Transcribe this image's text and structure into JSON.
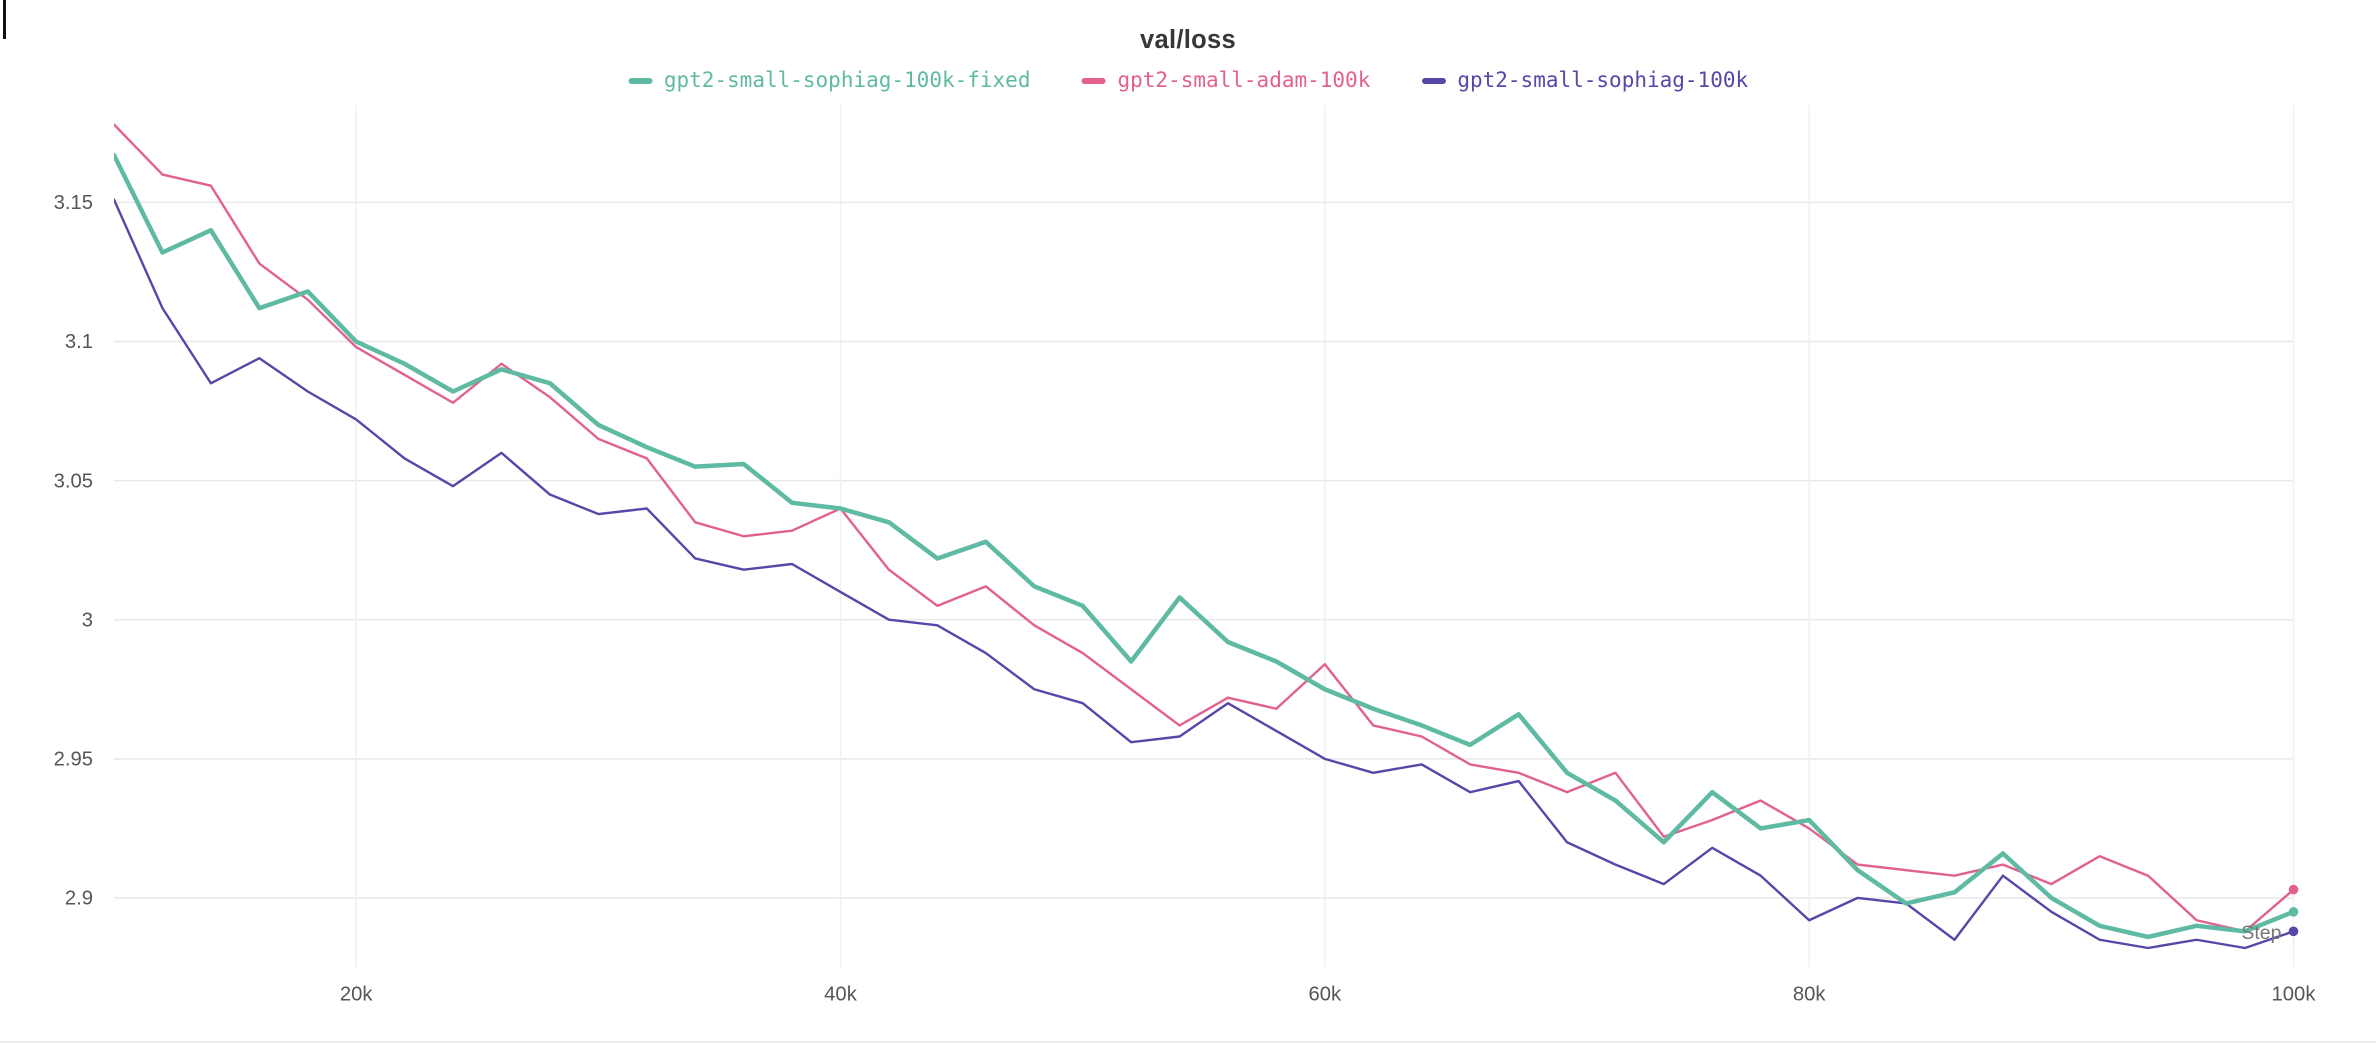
{
  "chart_data": {
    "type": "line",
    "title": "val/loss",
    "xlabel": "Step",
    "ylabel": "",
    "grid": true,
    "legend_position": "top",
    "xlim": [
      10000,
      100000
    ],
    "ylim": [
      2.875,
      3.185
    ],
    "x_ticks": [
      {
        "value": 20000,
        "label": "20k"
      },
      {
        "value": 40000,
        "label": "40k"
      },
      {
        "value": 60000,
        "label": "60k"
      },
      {
        "value": 80000,
        "label": "80k"
      },
      {
        "value": 100000,
        "label": "100k"
      }
    ],
    "y_ticks": [
      {
        "value": 3.15,
        "label": "3.15"
      },
      {
        "value": 3.1,
        "label": "3.1"
      },
      {
        "value": 3.05,
        "label": "3.05"
      },
      {
        "value": 3.0,
        "label": "3"
      },
      {
        "value": 2.95,
        "label": "2.95"
      },
      {
        "value": 2.9,
        "label": "2.9"
      }
    ],
    "x": [
      10000,
      12000,
      14000,
      16000,
      18000,
      20000,
      22000,
      24000,
      26000,
      28000,
      30000,
      32000,
      34000,
      36000,
      38000,
      40000,
      42000,
      44000,
      46000,
      48000,
      50000,
      52000,
      54000,
      56000,
      58000,
      60000,
      62000,
      64000,
      66000,
      68000,
      70000,
      72000,
      74000,
      76000,
      78000,
      80000,
      82000,
      84000,
      86000,
      88000,
      90000,
      92000,
      94000,
      96000,
      98000,
      100000
    ],
    "series": [
      {
        "name": "gpt2-small-adam-100k",
        "color": "#e2618e",
        "stroke_width": 1.6,
        "values": [
          3.178,
          3.16,
          3.156,
          3.128,
          3.115,
          3.098,
          3.088,
          3.078,
          3.092,
          3.08,
          3.065,
          3.058,
          3.035,
          3.03,
          3.032,
          3.04,
          3.018,
          3.005,
          3.012,
          2.998,
          2.988,
          2.975,
          2.962,
          2.972,
          2.968,
          2.984,
          2.962,
          2.958,
          2.948,
          2.945,
          2.938,
          2.945,
          2.922,
          2.928,
          2.935,
          2.925,
          2.912,
          2.91,
          2.908,
          2.912,
          2.905,
          2.915,
          2.908,
          2.892,
          2.888,
          2.903
        ]
      },
      {
        "name": "gpt2-small-sophiag-100k",
        "color": "#5747a8",
        "stroke_width": 1.6,
        "values": [
          3.151,
          3.112,
          3.085,
          3.094,
          3.082,
          3.072,
          3.058,
          3.048,
          3.06,
          3.045,
          3.038,
          3.04,
          3.022,
          3.018,
          3.02,
          3.01,
          3.0,
          2.998,
          2.988,
          2.975,
          2.97,
          2.956,
          2.958,
          2.97,
          2.96,
          2.95,
          2.945,
          2.948,
          2.938,
          2.942,
          2.92,
          2.912,
          2.905,
          2.918,
          2.908,
          2.892,
          2.9,
          2.898,
          2.885,
          2.908,
          2.895,
          2.885,
          2.882,
          2.885,
          2.882,
          2.888
        ]
      },
      {
        "name": "gpt2-small-sophiag-100k-fixed",
        "color": "#5fbaa3",
        "stroke_width": 3,
        "values": [
          3.167,
          3.132,
          3.14,
          3.112,
          3.118,
          3.1,
          3.092,
          3.082,
          3.09,
          3.085,
          3.07,
          3.062,
          3.055,
          3.056,
          3.042,
          3.04,
          3.035,
          3.022,
          3.028,
          3.012,
          3.005,
          2.985,
          3.008,
          2.992,
          2.985,
          2.975,
          2.968,
          2.962,
          2.955,
          2.966,
          2.945,
          2.935,
          2.92,
          2.938,
          2.925,
          2.928,
          2.91,
          2.898,
          2.902,
          2.916,
          2.9,
          2.89,
          2.886,
          2.89,
          2.888,
          2.895
        ]
      }
    ],
    "legend_order": [
      2,
      0,
      1
    ],
    "colors": {
      "grid_h": "#e8e8e8",
      "grid_v": "#f0f0f0",
      "tick_text": "#565656",
      "title_text": "#373737",
      "axis_title_text": "#767676"
    }
  }
}
